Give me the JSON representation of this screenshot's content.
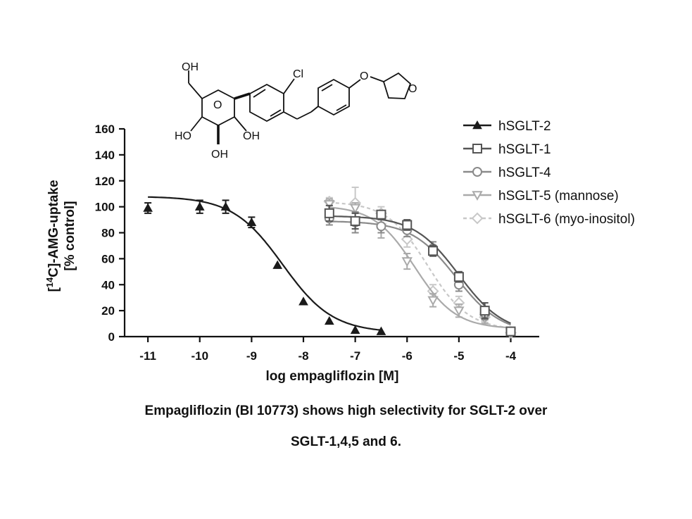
{
  "chart_data": {
    "type": "scatter",
    "xlabel": "log empagliflozin [M]",
    "ylabel_sup": "14",
    "ylabel_line1_a": "[",
    "ylabel_line1_b": "C]-AMG-uptake",
    "ylabel_line2": "[% control]",
    "xlim": [
      -11.45,
      -3.45
    ],
    "ylim": [
      0,
      160
    ],
    "x_ticks": [
      -11,
      -10,
      -9,
      -8,
      -7,
      -6,
      -5,
      -4
    ],
    "y_ticks": [
      0,
      20,
      40,
      60,
      80,
      100,
      120,
      140,
      160
    ],
    "x_tick_labels": [
      "-11",
      "-10",
      "-9",
      "-8",
      "-7",
      "-6",
      "-5",
      "-4"
    ],
    "y_tick_labels": [
      "0",
      "20",
      "40",
      "60",
      "80",
      "100",
      "120",
      "140",
      "160"
    ],
    "grid": false,
    "legend_position": "top-right",
    "series": [
      {
        "name": "hSGLT-2",
        "color": "#1a1a1a",
        "marker": "triangle-up",
        "dashed": false,
        "points": [
          [
            -11,
            99
          ],
          [
            -10,
            100
          ],
          [
            -9.5,
            100
          ],
          [
            -9,
            88
          ],
          [
            -8.5,
            55
          ],
          [
            -8,
            27
          ],
          [
            -7.5,
            12
          ],
          [
            -7,
            5
          ],
          [
            -6.5,
            4
          ]
        ],
        "errors": [
          4,
          5,
          5,
          4,
          0,
          0,
          0,
          0,
          0
        ],
        "curve": {
          "top": 108,
          "bottom": 3,
          "log_ic50": -8.4,
          "hill": -0.9,
          "x_range": [
            -11,
            -6.5
          ]
        }
      },
      {
        "name": "hSGLT-1",
        "color": "#555555",
        "marker": "square",
        "dashed": false,
        "points": [
          [
            -7.5,
            95
          ],
          [
            -7,
            89
          ],
          [
            -6.5,
            94
          ],
          [
            -6,
            86
          ],
          [
            -5.5,
            66
          ],
          [
            -5,
            46
          ],
          [
            -4.5,
            20
          ],
          [
            -4,
            4
          ]
        ],
        "errors": [
          6,
          6,
          3,
          4,
          4,
          4,
          6,
          2
        ],
        "curve": {
          "top": 93,
          "bottom": 2,
          "log_ic50": -5.0,
          "hill": -1.0,
          "x_range": [
            -7.5,
            -4
          ]
        }
      },
      {
        "name": "hSGLT-4",
        "color": "#8a8a8a",
        "marker": "circle",
        "dashed": false,
        "points": [
          [
            -7.5,
            91
          ],
          [
            -7,
            88
          ],
          [
            -6.5,
            85
          ],
          [
            -6,
            82
          ],
          [
            -5.5,
            68
          ],
          [
            -5,
            40
          ],
          [
            -4.5,
            18
          ],
          [
            -4,
            4
          ]
        ],
        "errors": [
          5,
          8,
          5,
          5,
          5,
          5,
          5,
          2
        ],
        "curve": {
          "top": 89,
          "bottom": 2,
          "log_ic50": -5.05,
          "hill": -1.0,
          "x_range": [
            -7.5,
            -4
          ]
        }
      },
      {
        "name": "hSGLT-5 (mannose)",
        "color": "#aaaaaa",
        "marker": "triangle-down",
        "dashed": false,
        "points": [
          [
            -7.5,
            102
          ],
          [
            -7,
            99
          ],
          [
            -6.5,
            84
          ],
          [
            -6,
            58
          ],
          [
            -5.5,
            28
          ],
          [
            -5,
            20
          ],
          [
            -4.5,
            14
          ],
          [
            -4,
            3
          ]
        ],
        "errors": [
          4,
          4,
          8,
          6,
          5,
          5,
          4,
          2
        ],
        "curve": {
          "top": 101,
          "bottom": 6,
          "log_ic50": -5.85,
          "hill": -1.1,
          "x_range": [
            -7.5,
            -4
          ]
        }
      },
      {
        "name": "hSGLT-6 (myo-inositol)",
        "color": "#c8c8c8",
        "marker": "diamond",
        "dashed": true,
        "points": [
          [
            -7.5,
            104
          ],
          [
            -7,
            103
          ],
          [
            -6.5,
            95
          ],
          [
            -6,
            75
          ],
          [
            -5.5,
            35
          ],
          [
            -5,
            26
          ],
          [
            -4.5,
            15
          ],
          [
            -4,
            3
          ]
        ],
        "errors": [
          3,
          12,
          5,
          6,
          5,
          5,
          4,
          2
        ],
        "curve": {
          "top": 104,
          "bottom": 5,
          "log_ic50": -5.6,
          "hill": -1.1,
          "x_range": [
            -7.5,
            -4
          ]
        }
      }
    ]
  },
  "structure": {
    "labels": [
      "OH",
      "HO",
      "OH",
      "OH",
      "O",
      "Cl",
      "O",
      "O"
    ]
  },
  "caption": {
    "line1": "Empagliflozin (BI 10773) shows high selectivity for SGLT-2 over",
    "line2": "SGLT-1,4,5 and 6."
  }
}
